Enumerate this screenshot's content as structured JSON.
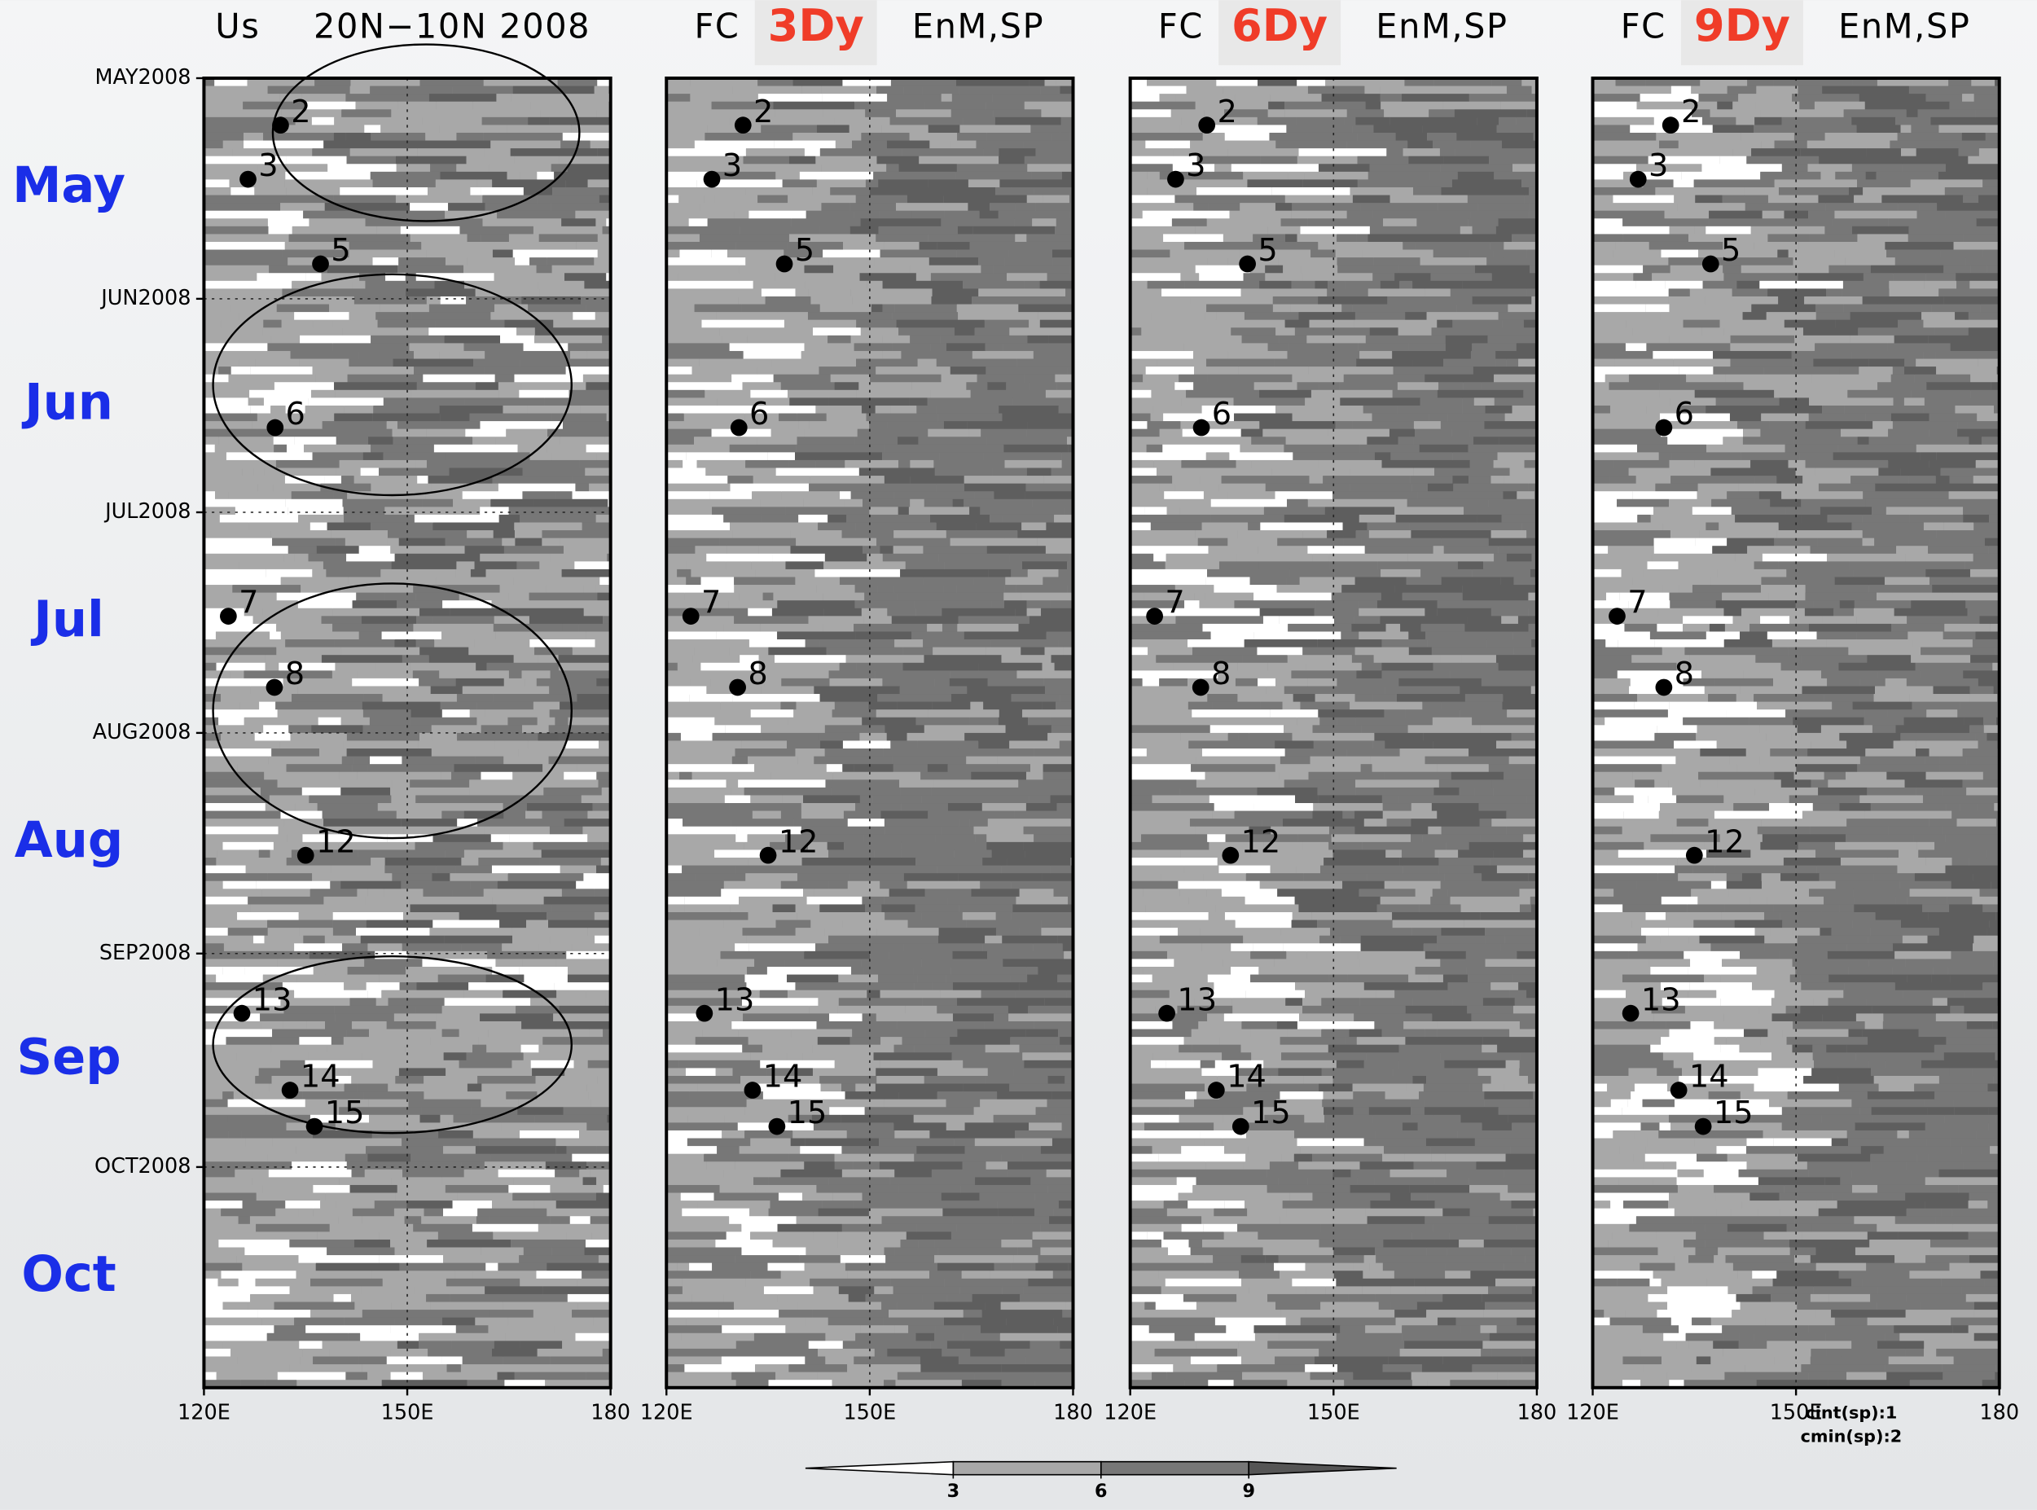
{
  "side_labels": [
    "May",
    "Jun",
    "Jul",
    "Aug",
    "Sep",
    "Oct"
  ],
  "chart_data": [
    {
      "type": "scatter",
      "title_left": "Us",
      "title_right": "20N−10N 2008",
      "xlim": [
        120,
        180
      ],
      "xticks": [
        {
          "value": 120,
          "label": "120E"
        },
        {
          "value": 150,
          "label": "150E"
        },
        {
          "value": 180,
          "label": "180"
        }
      ],
      "ylim": [
        0,
        184
      ],
      "yticks": [
        {
          "value": 0,
          "label": "MAY2008"
        },
        {
          "value": 31,
          "label": "JUN2008"
        },
        {
          "value": 61,
          "label": "JUL2008"
        },
        {
          "value": 92,
          "label": "AUG2008"
        },
        {
          "value": 123,
          "label": "SEP2008"
        },
        {
          "value": 153,
          "label": "OCT2008"
        }
      ],
      "x": [
        131.3,
        126.5,
        137.2,
        130.5,
        123.6,
        130.4,
        135,
        125.6,
        132.7,
        136.3
      ],
      "values": [
        6.6,
        14.2,
        26.1,
        49.1,
        75.6,
        85.6,
        109.2,
        131.4,
        142.2,
        147.3
      ],
      "labels": [
        "2",
        "3",
        "5",
        "6",
        "7",
        "8",
        "12",
        "13",
        "14",
        "15"
      ],
      "color": "#000000"
    },
    {
      "type": "scatter",
      "title_left": "FC",
      "title_highlight": "3Dy",
      "title_right": "EnM,SP",
      "highlight_color": "#f03c28",
      "xlim": [
        120,
        180
      ],
      "xticks": [
        {
          "value": 120,
          "label": "120E"
        },
        {
          "value": 150,
          "label": "150E"
        },
        {
          "value": 180,
          "label": "180"
        }
      ],
      "ylim": [
        0,
        184
      ],
      "x": [
        131.3,
        126.7,
        137.4,
        130.7,
        123.6,
        130.5,
        135,
        125.6,
        132.7,
        136.3
      ],
      "values": [
        6.6,
        14.2,
        26.1,
        49.1,
        75.6,
        85.6,
        109.2,
        131.4,
        142.2,
        147.3
      ],
      "labels": [
        "2",
        "3",
        "5",
        "6",
        "7",
        "8",
        "12",
        "13",
        "14",
        "15"
      ],
      "color": "#000000"
    },
    {
      "type": "scatter",
      "title_left": "FC",
      "title_highlight": "6Dy",
      "title_right": "EnM,SP",
      "highlight_color": "#f03c28",
      "xlim": [
        120,
        180
      ],
      "xticks": [
        {
          "value": 120,
          "label": "120E"
        },
        {
          "value": 150,
          "label": "150E"
        },
        {
          "value": 180,
          "label": "180"
        }
      ],
      "ylim": [
        0,
        184
      ],
      "x": [
        131.3,
        126.7,
        137.3,
        130.5,
        123.6,
        130.4,
        134.8,
        125.4,
        132.7,
        136.3
      ],
      "values": [
        6.6,
        14.2,
        26.1,
        49.1,
        75.6,
        85.6,
        109.2,
        131.4,
        142.2,
        147.3
      ],
      "labels": [
        "2",
        "3",
        "5",
        "6",
        "7",
        "8",
        "12",
        "13",
        "14",
        "15"
      ],
      "color": "#000000"
    },
    {
      "type": "scatter",
      "title_left": "FC",
      "title_highlight": "9Dy",
      "title_right": "EnM,SP",
      "highlight_color": "#f03c28",
      "xlim": [
        120,
        180
      ],
      "xticks": [
        {
          "value": 120,
          "label": "120E"
        },
        {
          "value": 150,
          "label": "150E"
        },
        {
          "value": 180,
          "label": "180"
        }
      ],
      "ylim": [
        0,
        184
      ],
      "x": [
        131.5,
        126.7,
        137.4,
        130.5,
        123.6,
        130.5,
        135,
        125.6,
        132.7,
        136.3
      ],
      "values": [
        6.6,
        14.2,
        26.1,
        49.1,
        75.6,
        85.6,
        109.2,
        131.4,
        142.2,
        147.3
      ],
      "labels": [
        "2",
        "3",
        "5",
        "6",
        "7",
        "8",
        "12",
        "13",
        "14",
        "15"
      ],
      "color": "#000000"
    }
  ],
  "colorbar": {
    "ticks": [
      3,
      6,
      9
    ],
    "colors": [
      "#ffffff",
      "#a8a8a8",
      "#777777",
      "#555555"
    ]
  },
  "contour_note": [
    "cint(sp):1",
    "cmin(sp):2"
  ]
}
